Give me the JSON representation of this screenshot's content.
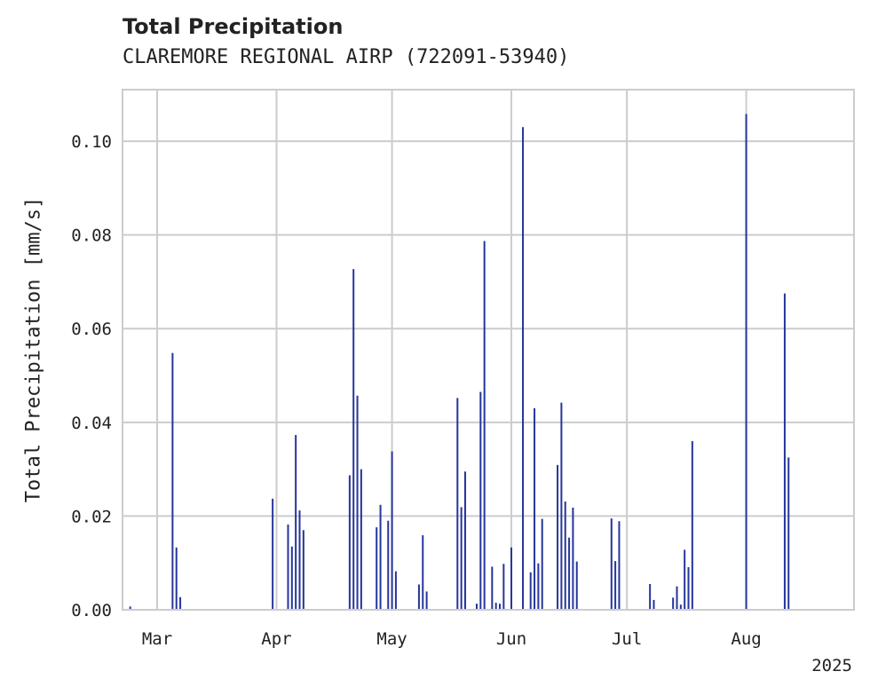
{
  "chart_data": {
    "type": "bar",
    "title": "Total Precipitation",
    "subtitle": "CLAREMORE REGIONAL AIRP (722091-53940)",
    "ylabel": "Total Precipitation [mm/s]",
    "xlabel": "",
    "year_label": "2025",
    "xlim": [
      "2025-02-20",
      "2025-08-29"
    ],
    "ylim": [
      0,
      0.111
    ],
    "yticks": [
      0.0,
      0.02,
      0.04,
      0.06,
      0.08,
      0.1
    ],
    "ytick_labels": [
      "0.00",
      "0.02",
      "0.04",
      "0.06",
      "0.08",
      "0.10"
    ],
    "xticks": [
      "2025-03-01",
      "2025-04-01",
      "2025-05-01",
      "2025-06-01",
      "2025-07-01",
      "2025-08-01"
    ],
    "xtick_labels": [
      "Mar",
      "Apr",
      "May",
      "Jun",
      "Jul",
      "Aug"
    ],
    "grid": true,
    "bar_color": "#26359a",
    "grid_color": "#cccccc",
    "series": [
      {
        "x": [
          "2025-02-22",
          "2025-03-05",
          "2025-03-06",
          "2025-03-07",
          "2025-03-31",
          "2025-04-04",
          "2025-04-05",
          "2025-04-06",
          "2025-04-07",
          "2025-04-08",
          "2025-04-20",
          "2025-04-21",
          "2025-04-22",
          "2025-04-23",
          "2025-04-27",
          "2025-04-28",
          "2025-04-30",
          "2025-05-01",
          "2025-05-02",
          "2025-05-08",
          "2025-05-09",
          "2025-05-10",
          "2025-05-18",
          "2025-05-19",
          "2025-05-20",
          "2025-05-23",
          "2025-05-24",
          "2025-05-25",
          "2025-05-27",
          "2025-05-28",
          "2025-05-29",
          "2025-05-30",
          "2025-06-01",
          "2025-06-04",
          "2025-06-06",
          "2025-06-07",
          "2025-06-08",
          "2025-06-09",
          "2025-06-13",
          "2025-06-14",
          "2025-06-15",
          "2025-06-16",
          "2025-06-17",
          "2025-06-18",
          "2025-06-27",
          "2025-06-28",
          "2025-06-29",
          "2025-07-07",
          "2025-07-08",
          "2025-07-13",
          "2025-07-14",
          "2025-07-15",
          "2025-07-16",
          "2025-07-17",
          "2025-07-18",
          "2025-08-01",
          "2025-08-11",
          "2025-08-12"
        ],
        "values": [
          0.0007,
          0.0548,
          0.0133,
          0.0027,
          0.0237,
          0.0182,
          0.0135,
          0.0373,
          0.0212,
          0.017,
          0.0287,
          0.0727,
          0.0457,
          0.03,
          0.0176,
          0.0224,
          0.019,
          0.0338,
          0.0082,
          0.0054,
          0.0159,
          0.0039,
          0.0452,
          0.0219,
          0.0295,
          0.0013,
          0.0465,
          0.0787,
          0.0092,
          0.0015,
          0.0013,
          0.0098,
          0.0133,
          0.103,
          0.008,
          0.043,
          0.0099,
          0.0194,
          0.0309,
          0.0442,
          0.0231,
          0.0154,
          0.0218,
          0.0103,
          0.0195,
          0.0104,
          0.0189,
          0.0055,
          0.0021,
          0.0026,
          0.005,
          0.0011,
          0.0128,
          0.0091,
          0.036,
          0.1058,
          0.0675,
          0.0325
        ]
      }
    ]
  }
}
